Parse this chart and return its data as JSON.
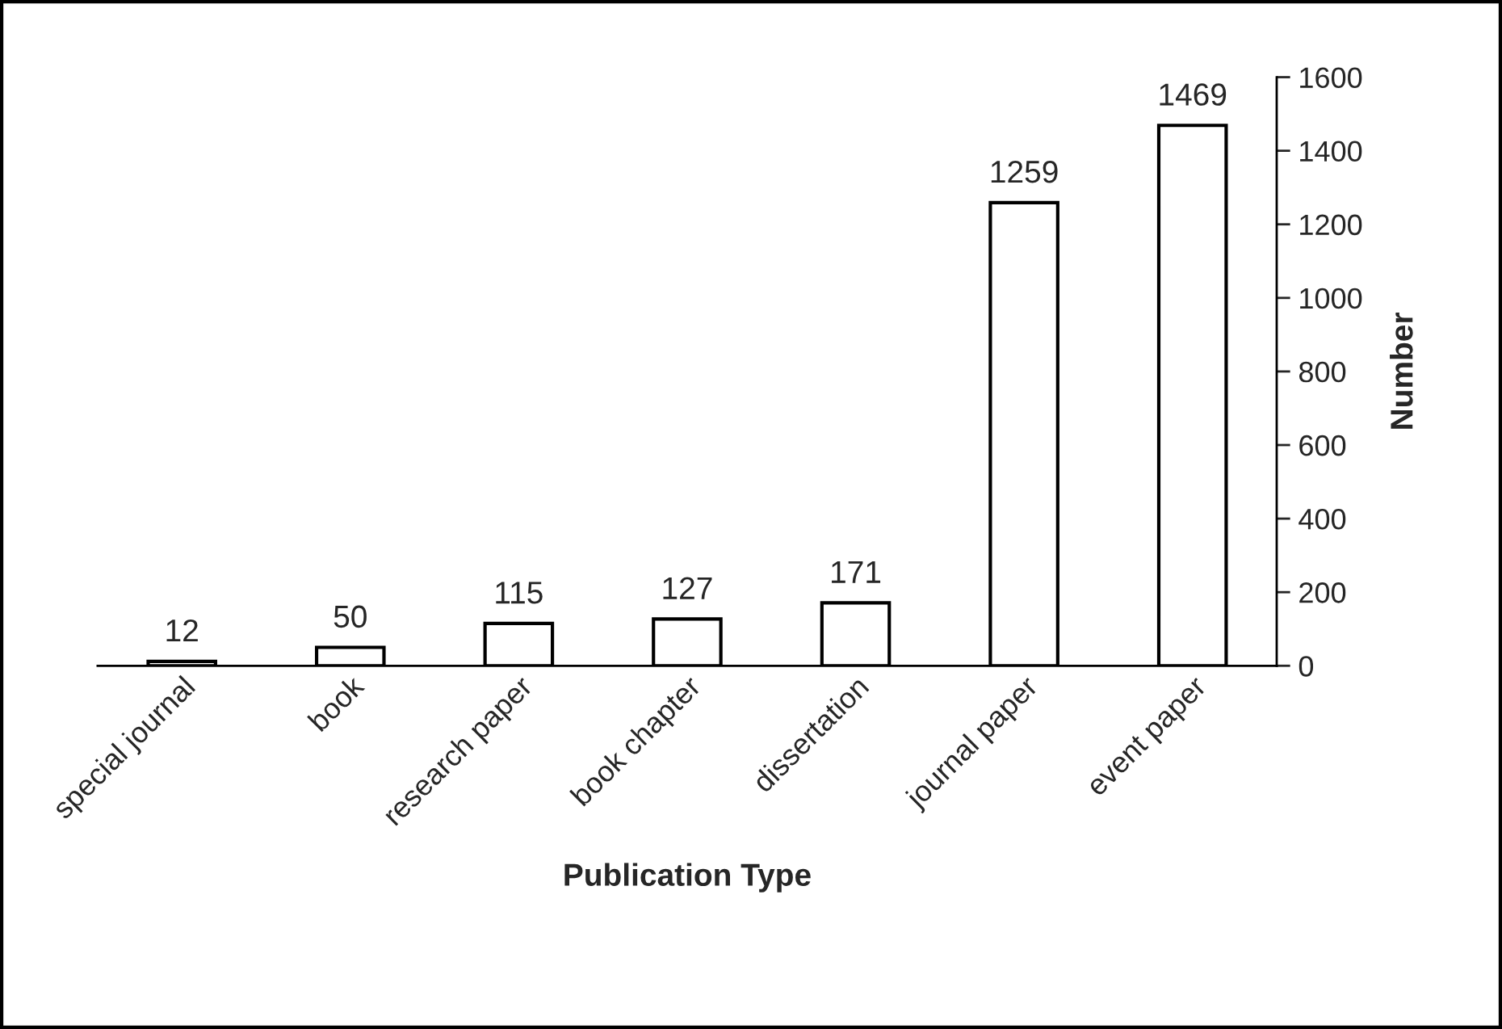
{
  "chart_data": {
    "type": "bar",
    "xlabel": "Publication Type",
    "ylabel": "Number",
    "categories": [
      "special journal",
      "book",
      "research paper",
      "book chapter",
      "dissertation",
      "journal paper",
      "event paper"
    ],
    "values": [
      12,
      50,
      115,
      127,
      171,
      1259,
      1469
    ],
    "color": "#ffffff",
    "ylim": [
      0,
      1600
    ],
    "yticks": [
      0,
      200,
      400,
      600,
      800,
      1000,
      1200,
      1400,
      1600
    ],
    "data_labels": true,
    "grid": false,
    "legend": false
  }
}
